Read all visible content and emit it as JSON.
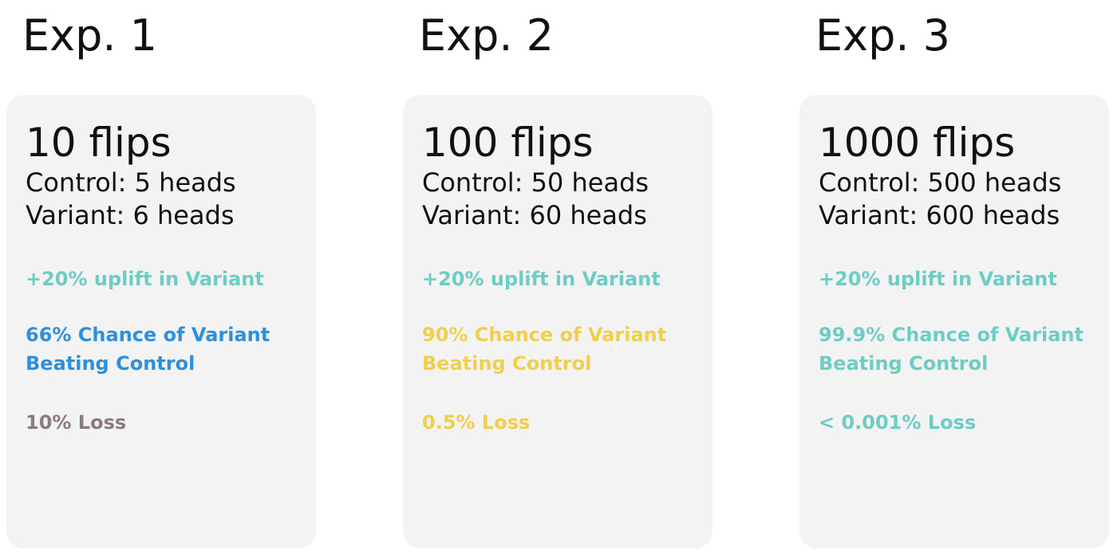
{
  "experiments": [
    {
      "title": "Exp. 1",
      "flips": "10 flips",
      "control": "Control: 5 heads",
      "variant": "Variant: 6 heads",
      "uplift": "+20% uplift in Variant",
      "chance": "66% Chance of Variant Beating Control",
      "loss": "10% Loss"
    },
    {
      "title": "Exp. 2",
      "flips": "100 flips",
      "control": "Control: 50 heads",
      "variant": "Variant: 60 heads",
      "uplift": "+20% uplift in Variant",
      "chance": "90% Chance of Variant Beating Control",
      "loss": "0.5% Loss"
    },
    {
      "title": "Exp. 3",
      "flips": "1000 flips",
      "control": "Control: 500 heads",
      "variant": "Variant: 600 heads",
      "uplift": "+20% uplift in Variant",
      "chance": "99.9% Chance of Variant Beating Control",
      "loss": "< 0.001% Loss"
    }
  ],
  "colors": {
    "uplift": "#6dcdc5",
    "exp1_chance": "#2e8fdd",
    "exp1_loss": "#8c7a82",
    "exp2_chance": "#f2cf4a",
    "exp2_loss": "#f2cf4a",
    "exp3_chance": "#6dcdc5",
    "exp3_loss": "#6dcdc5"
  }
}
